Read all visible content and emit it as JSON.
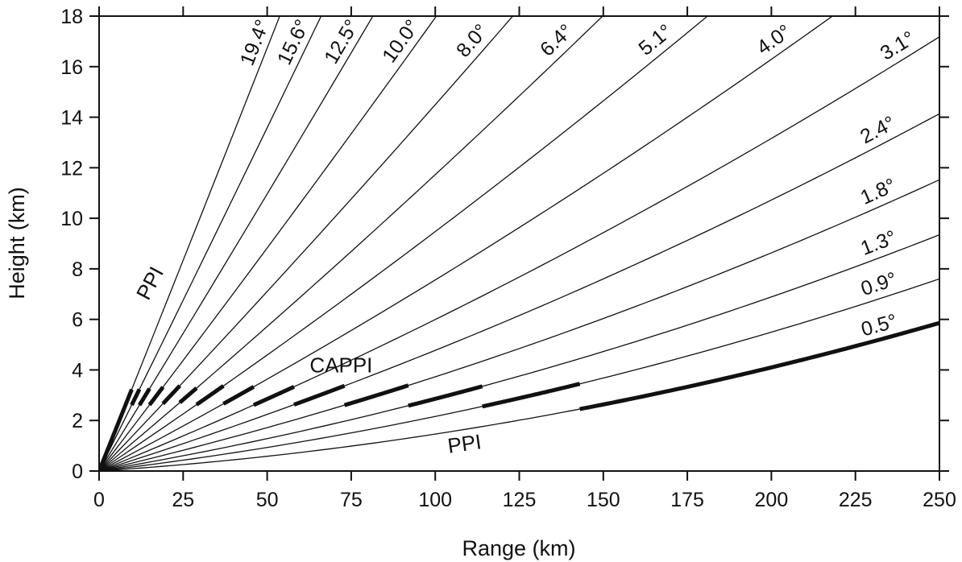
{
  "chart_data": {
    "type": "line",
    "title": "",
    "xlabel": "Range (km)",
    "ylabel": "Height (km)",
    "xlim": [
      0,
      250
    ],
    "ylim": [
      0,
      18
    ],
    "x_ticks": [
      0,
      25,
      50,
      75,
      100,
      125,
      150,
      175,
      200,
      225,
      250
    ],
    "y_ticks": [
      0,
      2,
      4,
      6,
      8,
      10,
      12,
      14,
      16,
      18
    ],
    "grid": false,
    "legend": "none",
    "line_color": "#111111",
    "series": [
      {
        "name": "0.5°",
        "elevation_deg": 0.5,
        "cappi_range_km": [
          143,
          250
        ]
      },
      {
        "name": "0.9°",
        "elevation_deg": 0.9,
        "cappi_range_km": [
          114,
          143
        ]
      },
      {
        "name": "1.3°",
        "elevation_deg": 1.3,
        "cappi_range_km": [
          92,
          114
        ]
      },
      {
        "name": "1.8°",
        "elevation_deg": 1.8,
        "cappi_range_km": [
          73,
          92
        ]
      },
      {
        "name": "2.4°",
        "elevation_deg": 2.4,
        "cappi_range_km": [
          58,
          73
        ]
      },
      {
        "name": "3.1°",
        "elevation_deg": 3.1,
        "cappi_range_km": [
          46,
          58
        ]
      },
      {
        "name": "4.0°",
        "elevation_deg": 4.0,
        "cappi_range_km": [
          37,
          46
        ]
      },
      {
        "name": "5.1°",
        "elevation_deg": 5.1,
        "cappi_range_km": [
          29,
          37
        ]
      },
      {
        "name": "6.4°",
        "elevation_deg": 6.4,
        "cappi_range_km": [
          24,
          29
        ]
      },
      {
        "name": "8.0°",
        "elevation_deg": 8.0,
        "cappi_range_km": [
          19,
          24
        ]
      },
      {
        "name": "10.0°",
        "elevation_deg": 10.0,
        "cappi_range_km": [
          15,
          19
        ]
      },
      {
        "name": "12.5°",
        "elevation_deg": 12.5,
        "cappi_range_km": [
          12,
          15
        ]
      },
      {
        "name": "15.6°",
        "elevation_deg": 15.6,
        "cappi_range_km": [
          9.7,
          12
        ]
      },
      {
        "name": "19.4°",
        "elevation_deg": 19.4,
        "cappi_range_km": [
          0,
          9.7
        ]
      }
    ],
    "annotations": [
      {
        "text": "PPI",
        "x": 17,
        "y": 7.3
      },
      {
        "text": "CAPPI",
        "x": 72,
        "y": 3.9
      },
      {
        "text": "PPI",
        "x": 109,
        "y": 0.8
      }
    ]
  }
}
